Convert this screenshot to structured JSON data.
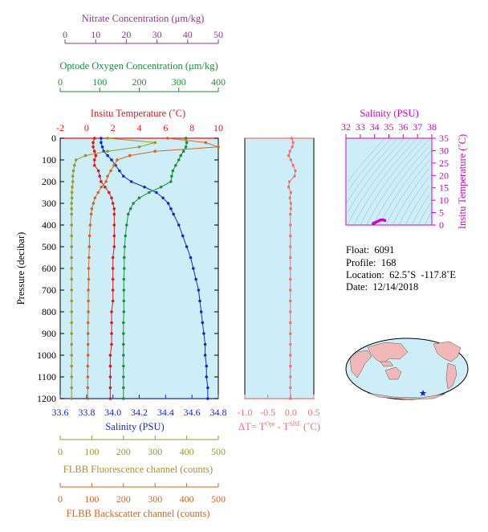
{
  "colors": {
    "nitrate": "#8b3a8f",
    "oxygen": "#1e8f3a",
    "temperature": "#e8141a",
    "salinity": "#1428c8",
    "fluorescence": "#9a9a2a",
    "backscatter": "#d9651e",
    "delta_t": "#f07070",
    "ts_axes": "#d400c8",
    "plot_bg": "#cdeef7",
    "land": "#f2b8b8"
  },
  "axes": {
    "nitrate": {
      "label": "Nitrate Concentration (μm/kg)",
      "ticks": [
        "0",
        "10",
        "20",
        "30",
        "40",
        "50"
      ],
      "range": [
        0,
        50
      ]
    },
    "oxygen": {
      "label": "Optode Oxygen Concentration (μm/kg)",
      "ticks": [
        "0",
        "100",
        "200",
        "300",
        "400"
      ],
      "range": [
        0,
        400
      ]
    },
    "temperature": {
      "label": "Insitu Temperature (˚C)",
      "ticks": [
        "-2",
        "0",
        "2",
        "4",
        "6",
        "8",
        "10"
      ],
      "range": [
        -2,
        10
      ]
    },
    "pressure": {
      "label": "Pressure (decibar)",
      "ticks": [
        "0",
        "100",
        "200",
        "300",
        "400",
        "500",
        "600",
        "700",
        "800",
        "900",
        "1000",
        "1100",
        "1200"
      ],
      "range": [
        0,
        1200
      ]
    },
    "salinity": {
      "label": "Salinity (PSU)",
      "ticks": [
        "33.6",
        "33.8",
        "34.0",
        "34.2",
        "34.4",
        "34.6",
        "34.8"
      ],
      "range": [
        33.6,
        34.8
      ]
    },
    "delta_t": {
      "label_prefix": "ΔT= T",
      "sup1": "Opt",
      "label_mid": " - T",
      "sup2": "SBE",
      "label_suffix": " (˚C)",
      "ticks": [
        "-1.0",
        "-0.5",
        "0.0",
        "0.5"
      ],
      "range": [
        -1.0,
        0.5
      ]
    },
    "fluorescence": {
      "label": "FLBB Fluorescence channel (counts)",
      "ticks": [
        "0",
        "100",
        "200",
        "300",
        "400",
        "500"
      ],
      "range": [
        0,
        500
      ]
    },
    "backscatter": {
      "label": "FLBB Backscatter channel (counts)",
      "ticks": [
        "0",
        "100",
        "200",
        "300",
        "400",
        "500"
      ],
      "range": [
        0,
        500
      ]
    },
    "ts_salinity": {
      "label": "Salinity (PSU)",
      "ticks": [
        "32",
        "33",
        "34",
        "35",
        "36",
        "37",
        "38"
      ],
      "range": [
        32,
        38
      ]
    },
    "ts_temperature": {
      "label": "Insitu Temperature (˚C)",
      "ticks": [
        "0",
        "5",
        "10",
        "15",
        "20",
        "25",
        "30",
        "35"
      ],
      "range": [
        0,
        35
      ]
    }
  },
  "info": {
    "float": "Float:  6091",
    "profile": "Profile:  168",
    "location": "Location:  62.5˚S  -117.8˚E",
    "date": "Date:  12/14/2018"
  },
  "chart_data": [
    {
      "type": "line",
      "name": "profile",
      "pressure": [
        0,
        20,
        40,
        60,
        80,
        100,
        125,
        150,
        175,
        200,
        225,
        250,
        275,
        300,
        325,
        350,
        400,
        450,
        500,
        550,
        600,
        650,
        700,
        750,
        800,
        850,
        900,
        950,
        1000,
        1050,
        1100,
        1150,
        1200
      ],
      "series": [
        {
          "name": "Insitu Temperature",
          "axis": "temperature",
          "values": [
            0.6,
            0.5,
            0.5,
            0.6,
            0.7,
            0.6,
            0.6,
            0.9,
            1.0,
            1.1,
            1.4,
            1.7,
            1.9,
            2.0,
            2.1,
            2.1,
            2.1,
            2.1,
            2.1,
            2.0,
            2.0,
            2.0,
            2.0,
            2.0,
            1.9,
            1.9,
            1.9,
            1.9,
            1.8,
            1.8,
            1.8,
            1.8,
            1.8
          ]
        },
        {
          "name": "Salinity",
          "axis": "salinity",
          "values": [
            33.91,
            33.91,
            33.92,
            33.93,
            33.96,
            33.99,
            34.02,
            34.05,
            34.08,
            34.14,
            34.24,
            34.33,
            34.38,
            34.42,
            34.44,
            34.46,
            34.5,
            34.53,
            34.56,
            34.59,
            34.61,
            34.63,
            34.65,
            34.66,
            34.67,
            34.68,
            34.69,
            34.7,
            34.7,
            34.71,
            34.71,
            34.72,
            34.72
          ]
        },
        {
          "name": "Optode Oxygen Concentration",
          "axis": "oxygen",
          "values": [
            318,
            320,
            318,
            312,
            305,
            300,
            292,
            285,
            282,
            280,
            255,
            225,
            200,
            185,
            178,
            172,
            168,
            165,
            163,
            162,
            162,
            161,
            161,
            161,
            161,
            160,
            160,
            160,
            160,
            160,
            160,
            160,
            160
          ]
        },
        {
          "name": "FLBB Fluorescence channel",
          "axis": "fluorescence",
          "values": [
            150,
            300,
            250,
            150,
            80,
            50,
            45,
            42,
            40,
            40,
            38,
            37,
            37,
            36,
            36,
            36,
            36,
            36,
            36,
            36,
            36,
            36,
            36,
            36,
            36,
            36,
            36,
            36,
            36,
            36,
            36,
            36,
            36
          ]
        },
        {
          "name": "FLBB Backscatter channel",
          "axis": "backscatter",
          "values": [
            340,
            460,
            500,
            300,
            220,
            180,
            170,
            160,
            150,
            145,
            130,
            120,
            110,
            105,
            100,
            98,
            95,
            93,
            92,
            91,
            90,
            90,
            89,
            89,
            89,
            88,
            88,
            88,
            88,
            87,
            87,
            87,
            87
          ]
        }
      ]
    },
    {
      "type": "line",
      "name": "delta_t",
      "pressure": [
        0,
        20,
        40,
        60,
        80,
        100,
        125,
        150,
        175,
        200,
        225,
        250,
        275,
        300,
        325,
        350,
        400,
        450,
        500,
        550,
        600,
        650,
        700,
        750,
        800,
        850,
        900,
        950,
        1000,
        1050,
        1100,
        1150,
        1200
      ],
      "values": [
        0.02,
        0.05,
        0.03,
        -0.02,
        -0.05,
        0.0,
        0.05,
        0.1,
        0.08,
        -0.03,
        -0.05,
        0.0,
        -0.02,
        0.0,
        0.0,
        -0.01,
        -0.01,
        -0.01,
        -0.01,
        -0.01,
        -0.01,
        -0.01,
        -0.01,
        -0.01,
        -0.01,
        -0.01,
        -0.01,
        -0.01,
        -0.01,
        -0.01,
        -0.01,
        -0.01,
        -0.01
      ]
    },
    {
      "type": "scatter",
      "name": "ts_diagram",
      "x": [
        33.9,
        33.95,
        34.0,
        34.1,
        34.2,
        34.3,
        34.4,
        34.5,
        34.6,
        34.7,
        34.72
      ],
      "y": [
        0.6,
        0.5,
        0.9,
        1.1,
        1.4,
        1.7,
        2.0,
        2.1,
        2.05,
        1.9,
        1.8
      ]
    }
  ]
}
